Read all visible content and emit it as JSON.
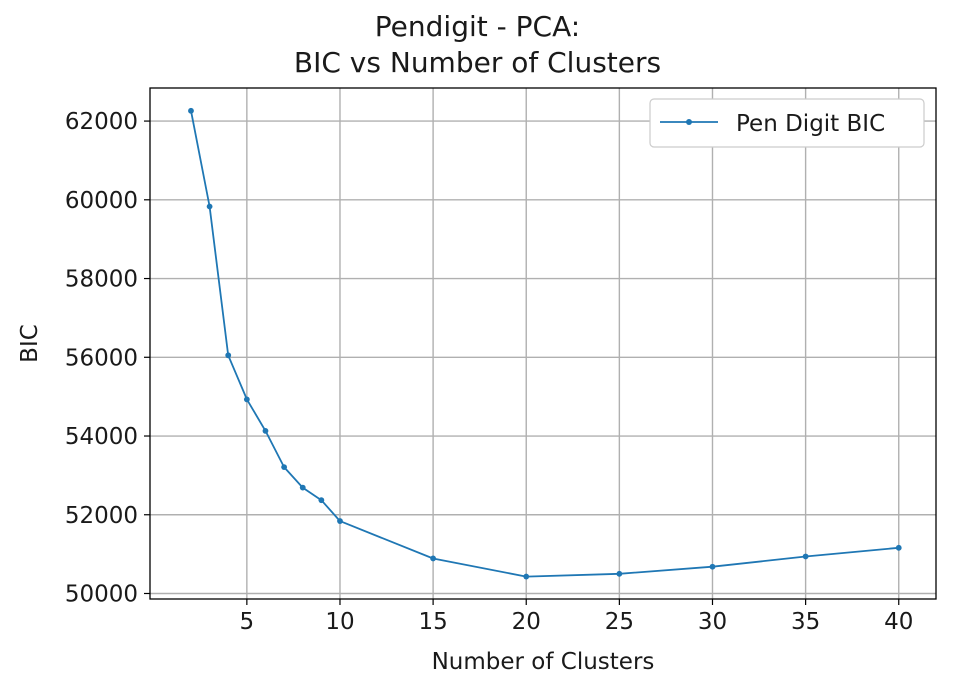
{
  "chart_data": {
    "type": "line",
    "title_lines": [
      "Pendigit - PCA:",
      "BIC vs Number of Clusters"
    ],
    "xlabel": "Number of Clusters",
    "ylabel": "BIC",
    "xlim": [
      -0.2,
      42.0
    ],
    "ylim": [
      49860,
      62840
    ],
    "xticks": [
      5,
      10,
      15,
      20,
      25,
      30,
      35,
      40
    ],
    "yticks": [
      50000,
      52000,
      54000,
      56000,
      58000,
      60000,
      62000
    ],
    "grid": true,
    "legend_position": "top-right",
    "series": [
      {
        "name": "Pen Digit BIC",
        "color": "#1f77b4",
        "marker": "dot",
        "x": [
          2,
          3,
          4,
          5,
          6,
          7,
          8,
          9,
          10,
          15,
          20,
          25,
          30,
          35,
          40
        ],
        "y": [
          62260,
          59830,
          56050,
          54930,
          54130,
          53210,
          52690,
          52370,
          51840,
          50890,
          50430,
          50500,
          50680,
          50940,
          51160
        ]
      }
    ]
  }
}
